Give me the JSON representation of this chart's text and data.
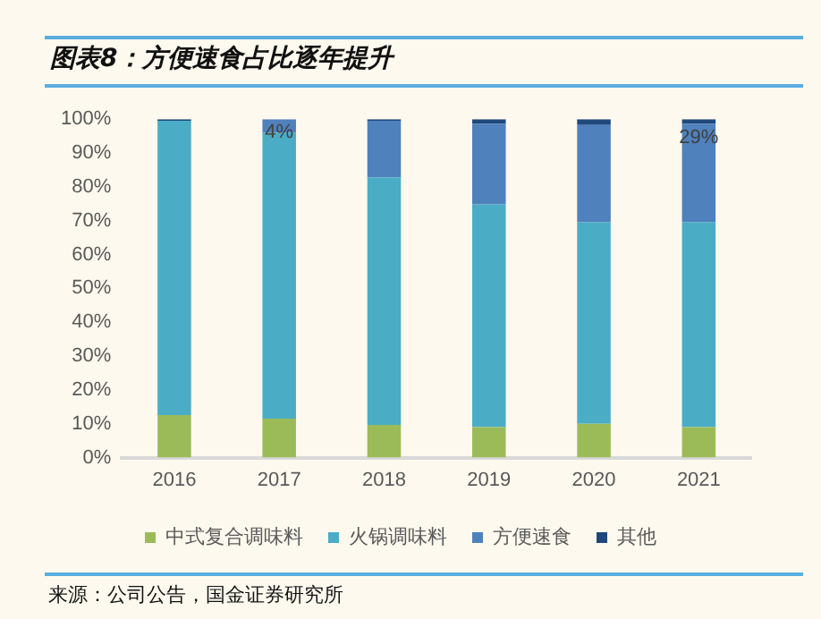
{
  "chart_data": {
    "type": "bar",
    "title": "图表8：方便速食占比逐年提升",
    "categories": [
      "2016",
      "2017",
      "2018",
      "2019",
      "2020",
      "2021"
    ],
    "stacked": true,
    "series": [
      {
        "name": "中式复合调味料",
        "color": "#9bbb59",
        "values": [
          12.6,
          11.5,
          9.7,
          9.0,
          10.0,
          9.0
        ]
      },
      {
        "name": "火锅调味料",
        "color": "#4bacc6",
        "values": [
          86.9,
          84.5,
          73.1,
          65.8,
          59.5,
          60.6
        ]
      },
      {
        "name": "方便速食",
        "color": "#4f81bd",
        "values": [
          0,
          4,
          16.7,
          23.8,
          28.8,
          29
        ],
        "value_labels": [
          null,
          "4%",
          null,
          null,
          null,
          "29%"
        ]
      },
      {
        "name": "其他",
        "color": "#1f497d",
        "values": [
          0.5,
          0,
          0.5,
          1.4,
          1.7,
          1.4
        ]
      }
    ],
    "ylim": [
      0,
      100
    ],
    "yticks": [
      {
        "value": 0,
        "label": "0%"
      },
      {
        "value": 10,
        "label": "10%"
      },
      {
        "value": 20,
        "label": "20%"
      },
      {
        "value": 30,
        "label": "30%"
      },
      {
        "value": 40,
        "label": "40%"
      },
      {
        "value": 50,
        "label": "50%"
      },
      {
        "value": 60,
        "label": "60%"
      },
      {
        "value": 70,
        "label": "70%"
      },
      {
        "value": 80,
        "label": "80%"
      },
      {
        "value": 90,
        "label": "90%"
      },
      {
        "value": 100,
        "label": "100%"
      }
    ],
    "grid": false,
    "legend": "bottom",
    "annotations": [
      "来源：公司公告，国金证券研究所"
    ]
  }
}
